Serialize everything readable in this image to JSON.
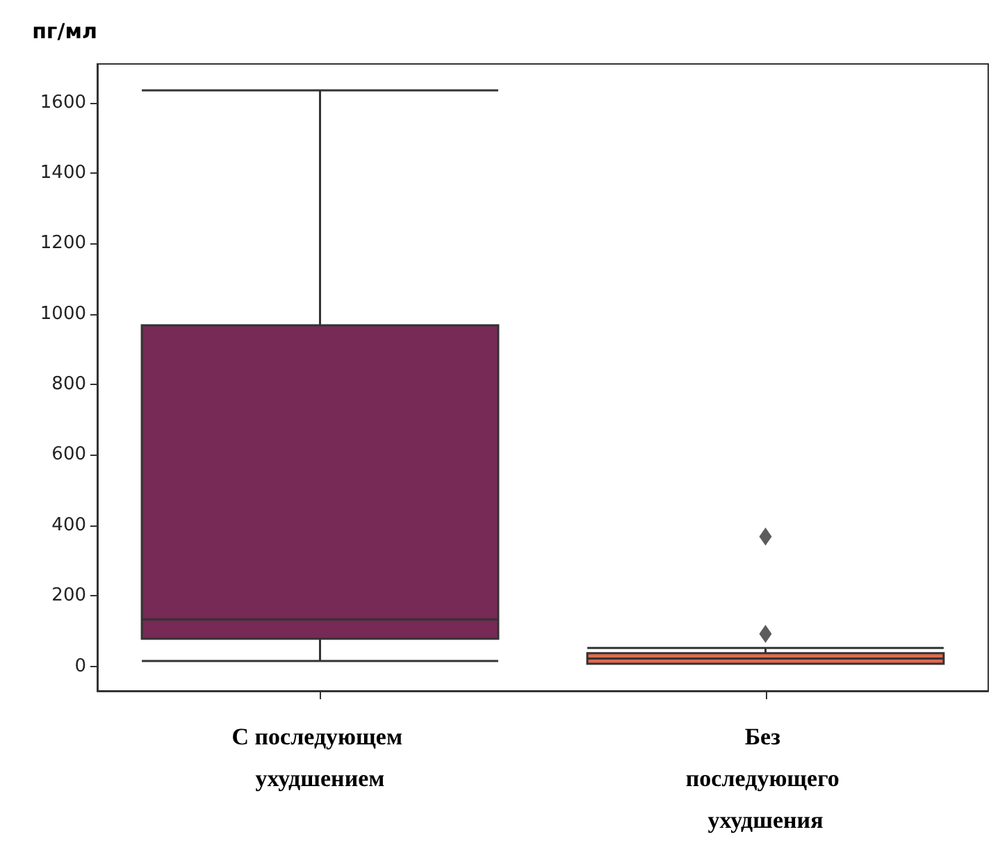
{
  "chart_data": {
    "type": "box",
    "ylabel": "пг/мл",
    "categories": [
      "С последующем ухудшением",
      "Без последующего ухудшения"
    ],
    "series": [
      {
        "colors": [
          "#762a55",
          "#e06a4f"
        ],
        "boxes": [
          {
            "low": 15,
            "q1": 78,
            "median": 133,
            "q3": 968,
            "high": 1635
          },
          {
            "low": 7,
            "q1": 7,
            "median": 22,
            "q3": 37,
            "high": 52,
            "outliers": [
              92,
              368
            ]
          }
        ]
      }
    ],
    "ylim": [
      -70,
      1710
    ],
    "yticks": [
      0,
      200,
      400,
      600,
      800,
      1000,
      1200,
      1400,
      1600
    ],
    "grid": false,
    "marker": "diamond"
  }
}
